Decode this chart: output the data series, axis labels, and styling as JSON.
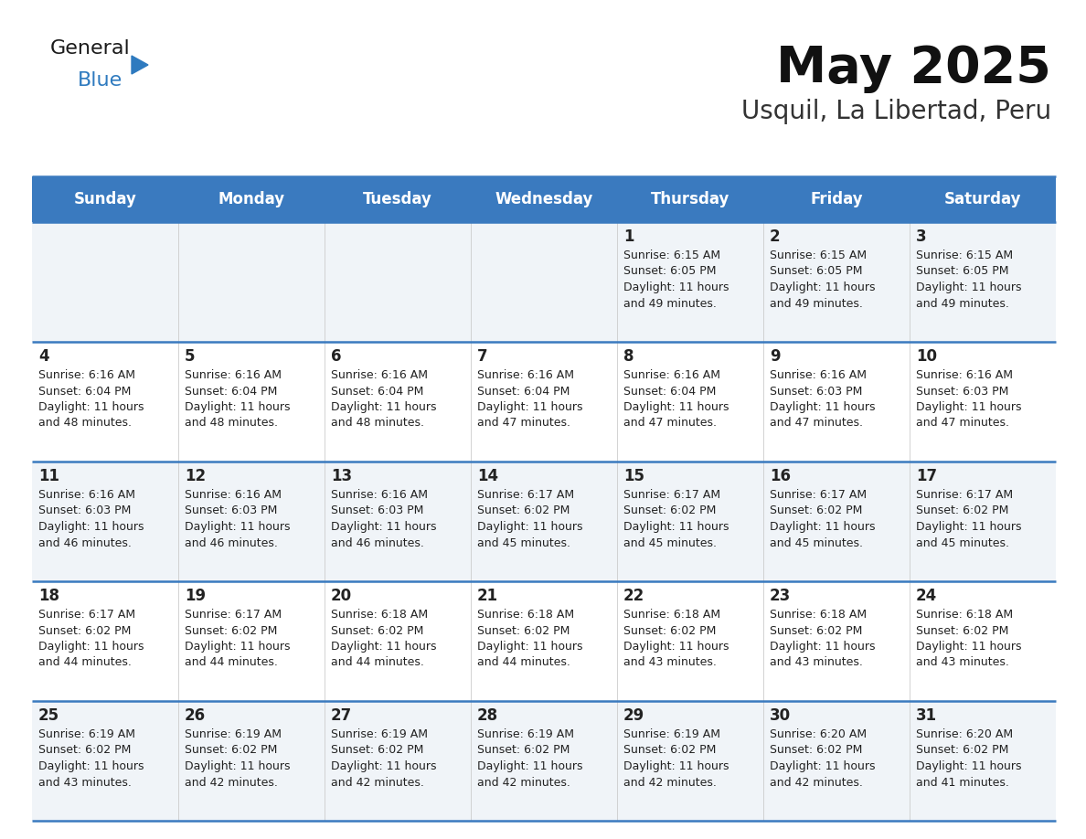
{
  "title": "May 2025",
  "subtitle": "Usquil, La Libertad, Peru",
  "header_color": "#3a7abf",
  "header_text_color": "#ffffff",
  "cell_bg_even": "#f0f4f8",
  "cell_bg_odd": "#ffffff",
  "border_color": "#3a7abf",
  "text_color": "#222222",
  "days_of_week": [
    "Sunday",
    "Monday",
    "Tuesday",
    "Wednesday",
    "Thursday",
    "Friday",
    "Saturday"
  ],
  "weeks": [
    [
      {
        "day": "",
        "info": ""
      },
      {
        "day": "",
        "info": ""
      },
      {
        "day": "",
        "info": ""
      },
      {
        "day": "",
        "info": ""
      },
      {
        "day": "1",
        "info": "Sunrise: 6:15 AM\nSunset: 6:05 PM\nDaylight: 11 hours\nand 49 minutes."
      },
      {
        "day": "2",
        "info": "Sunrise: 6:15 AM\nSunset: 6:05 PM\nDaylight: 11 hours\nand 49 minutes."
      },
      {
        "day": "3",
        "info": "Sunrise: 6:15 AM\nSunset: 6:05 PM\nDaylight: 11 hours\nand 49 minutes."
      }
    ],
    [
      {
        "day": "4",
        "info": "Sunrise: 6:16 AM\nSunset: 6:04 PM\nDaylight: 11 hours\nand 48 minutes."
      },
      {
        "day": "5",
        "info": "Sunrise: 6:16 AM\nSunset: 6:04 PM\nDaylight: 11 hours\nand 48 minutes."
      },
      {
        "day": "6",
        "info": "Sunrise: 6:16 AM\nSunset: 6:04 PM\nDaylight: 11 hours\nand 48 minutes."
      },
      {
        "day": "7",
        "info": "Sunrise: 6:16 AM\nSunset: 6:04 PM\nDaylight: 11 hours\nand 47 minutes."
      },
      {
        "day": "8",
        "info": "Sunrise: 6:16 AM\nSunset: 6:04 PM\nDaylight: 11 hours\nand 47 minutes."
      },
      {
        "day": "9",
        "info": "Sunrise: 6:16 AM\nSunset: 6:03 PM\nDaylight: 11 hours\nand 47 minutes."
      },
      {
        "day": "10",
        "info": "Sunrise: 6:16 AM\nSunset: 6:03 PM\nDaylight: 11 hours\nand 47 minutes."
      }
    ],
    [
      {
        "day": "11",
        "info": "Sunrise: 6:16 AM\nSunset: 6:03 PM\nDaylight: 11 hours\nand 46 minutes."
      },
      {
        "day": "12",
        "info": "Sunrise: 6:16 AM\nSunset: 6:03 PM\nDaylight: 11 hours\nand 46 minutes."
      },
      {
        "day": "13",
        "info": "Sunrise: 6:16 AM\nSunset: 6:03 PM\nDaylight: 11 hours\nand 46 minutes."
      },
      {
        "day": "14",
        "info": "Sunrise: 6:17 AM\nSunset: 6:02 PM\nDaylight: 11 hours\nand 45 minutes."
      },
      {
        "day": "15",
        "info": "Sunrise: 6:17 AM\nSunset: 6:02 PM\nDaylight: 11 hours\nand 45 minutes."
      },
      {
        "day": "16",
        "info": "Sunrise: 6:17 AM\nSunset: 6:02 PM\nDaylight: 11 hours\nand 45 minutes."
      },
      {
        "day": "17",
        "info": "Sunrise: 6:17 AM\nSunset: 6:02 PM\nDaylight: 11 hours\nand 45 minutes."
      }
    ],
    [
      {
        "day": "18",
        "info": "Sunrise: 6:17 AM\nSunset: 6:02 PM\nDaylight: 11 hours\nand 44 minutes."
      },
      {
        "day": "19",
        "info": "Sunrise: 6:17 AM\nSunset: 6:02 PM\nDaylight: 11 hours\nand 44 minutes."
      },
      {
        "day": "20",
        "info": "Sunrise: 6:18 AM\nSunset: 6:02 PM\nDaylight: 11 hours\nand 44 minutes."
      },
      {
        "day": "21",
        "info": "Sunrise: 6:18 AM\nSunset: 6:02 PM\nDaylight: 11 hours\nand 44 minutes."
      },
      {
        "day": "22",
        "info": "Sunrise: 6:18 AM\nSunset: 6:02 PM\nDaylight: 11 hours\nand 43 minutes."
      },
      {
        "day": "23",
        "info": "Sunrise: 6:18 AM\nSunset: 6:02 PM\nDaylight: 11 hours\nand 43 minutes."
      },
      {
        "day": "24",
        "info": "Sunrise: 6:18 AM\nSunset: 6:02 PM\nDaylight: 11 hours\nand 43 minutes."
      }
    ],
    [
      {
        "day": "25",
        "info": "Sunrise: 6:19 AM\nSunset: 6:02 PM\nDaylight: 11 hours\nand 43 minutes."
      },
      {
        "day": "26",
        "info": "Sunrise: 6:19 AM\nSunset: 6:02 PM\nDaylight: 11 hours\nand 42 minutes."
      },
      {
        "day": "27",
        "info": "Sunrise: 6:19 AM\nSunset: 6:02 PM\nDaylight: 11 hours\nand 42 minutes."
      },
      {
        "day": "28",
        "info": "Sunrise: 6:19 AM\nSunset: 6:02 PM\nDaylight: 11 hours\nand 42 minutes."
      },
      {
        "day": "29",
        "info": "Sunrise: 6:19 AM\nSunset: 6:02 PM\nDaylight: 11 hours\nand 42 minutes."
      },
      {
        "day": "30",
        "info": "Sunrise: 6:20 AM\nSunset: 6:02 PM\nDaylight: 11 hours\nand 42 minutes."
      },
      {
        "day": "31",
        "info": "Sunrise: 6:20 AM\nSunset: 6:02 PM\nDaylight: 11 hours\nand 41 minutes."
      }
    ]
  ],
  "logo_text_general": "General",
  "logo_text_blue": "Blue",
  "logo_color_general": "#1a1a1a",
  "logo_color_blue": "#2e7abf",
  "logo_triangle_color": "#2e7abf",
  "title_fontsize": 40,
  "subtitle_fontsize": 20,
  "day_header_fontsize": 12,
  "day_num_fontsize": 12,
  "info_fontsize": 9
}
